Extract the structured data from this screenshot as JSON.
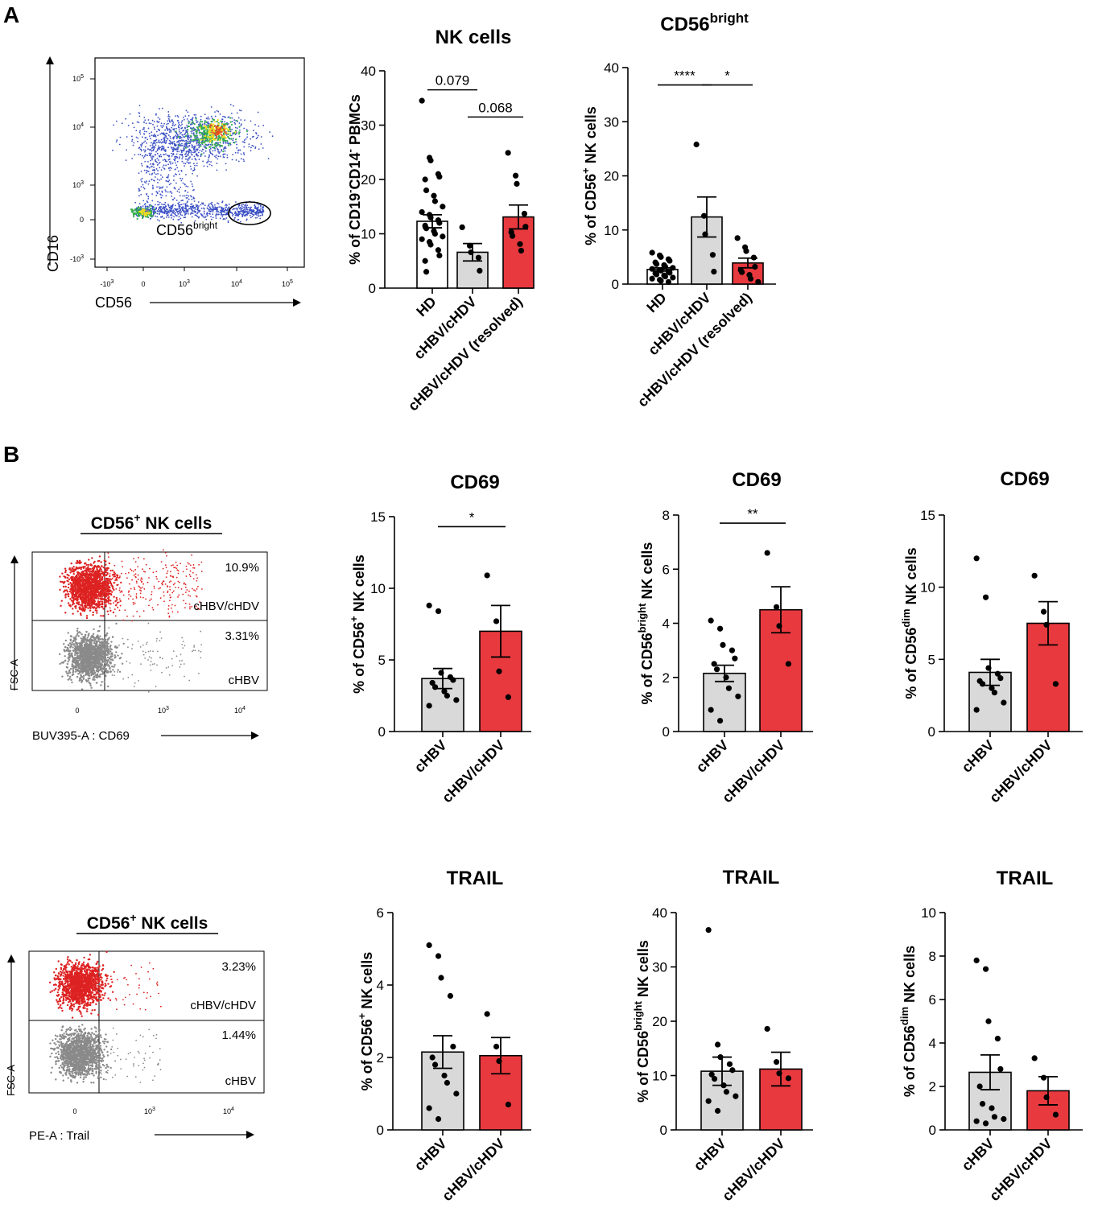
{
  "panels": {
    "A": "A",
    "B": "B"
  },
  "colors": {
    "white_bar": "#ffffff",
    "gray_bar": "#d9d9d9",
    "red_bar": "#e8393f",
    "flow_red": "#dd2222",
    "flow_gray": "#8a8a8a"
  },
  "flow": {
    "A": {
      "y_axis_label": "CD16",
      "x_axis_label": "CD56",
      "gate_label_main": "CD56",
      "gate_label_sup": "bright",
      "x_ticks": [
        "-10",
        "0",
        "10",
        "10",
        "10"
      ],
      "x_tick_exps": [
        "3",
        "",
        "3",
        "4",
        "5"
      ],
      "y_ticks": [
        "10",
        "10",
        "10",
        "0",
        "-10"
      ],
      "y_tick_exps": [
        "5",
        "4",
        "3",
        "",
        "3"
      ]
    },
    "B1": {
      "title_pre": "CD56",
      "title_sup": "+",
      "title_post": " NK cells",
      "top_pct": "10.9%",
      "top_group": "cHBV/cHDV",
      "bottom_pct": "3.31%",
      "bottom_group": "cHBV",
      "y_axis_label": "FSC-A",
      "x_axis_label": "BUV395-A : CD69",
      "x_ticks": [
        "0",
        "10",
        "10"
      ],
      "x_tick_exps": [
        "",
        "3",
        "4"
      ]
    },
    "B2": {
      "title_pre": "CD56",
      "title_sup": "+",
      "title_post": " NK cells",
      "top_pct": "3.23%",
      "top_group": "cHBV/cHDV",
      "bottom_pct": "1.44%",
      "bottom_group": "cHBV",
      "y_axis_label": "FSC-A",
      "x_axis_label": "PE-A : Trail",
      "x_ticks": [
        "0",
        "10",
        "10"
      ],
      "x_tick_exps": [
        "",
        "3",
        "4"
      ]
    }
  },
  "chart_data": [
    {
      "type": "bar",
      "id": "nk",
      "title": "NK cells",
      "title_sup": "",
      "ylabel_parts": [
        [
          "% of CD19",
          ""
        ],
        [
          "-",
          "sup"
        ],
        [
          "CD14",
          ""
        ],
        [
          "-",
          "sup"
        ],
        [
          " PBMCs",
          ""
        ]
      ],
      "ylim": [
        0,
        40
      ],
      "yticks": [
        0,
        10,
        20,
        30,
        40
      ],
      "categories": [
        "HD",
        "cHBV/cHDV",
        "cHBV/cHDV (resolved)"
      ],
      "values": [
        12.3,
        6.6,
        13.1
      ],
      "sem": [
        1.2,
        1.6,
        2.2
      ],
      "points": [
        [
          34.5,
          24,
          23.5,
          21,
          20.5,
          20,
          18,
          17,
          16,
          15,
          14,
          13.5,
          13,
          12.5,
          12,
          11.5,
          11,
          10.5,
          10,
          9.5,
          9,
          8.5,
          8,
          7,
          6,
          5,
          3
        ],
        [
          11.2,
          7.8,
          6.6,
          5.6,
          3.2
        ],
        [
          24.9,
          20.7,
          19.2,
          13.7,
          11.3,
          10.3,
          9.6,
          8.1,
          6.9
        ]
      ],
      "fill_keys": [
        "white_bar",
        "gray_bar",
        "red_bar"
      ],
      "significance": [
        {
          "from": 0,
          "to": 1,
          "label": "0.079",
          "level": 36.5
        },
        {
          "from": 1,
          "to": 2,
          "label": "0.068",
          "level": 31.5
        }
      ]
    },
    {
      "type": "bar",
      "id": "cd56b",
      "title": "CD56",
      "title_sup": "bright",
      "ylabel_parts": [
        [
          "% of CD56",
          ""
        ],
        [
          "+",
          "sup"
        ],
        [
          " NK cells",
          ""
        ]
      ],
      "ylim": [
        0,
        40
      ],
      "yticks": [
        0,
        10,
        20,
        30,
        40
      ],
      "categories": [
        "HD",
        "cHBV/cHDV",
        "cHBV/cHDV (resolved)"
      ],
      "values": [
        2.7,
        12.4,
        3.9
      ],
      "sem": [
        0.3,
        3.7,
        0.9
      ],
      "points": [
        [
          5.8,
          5.3,
          5.0,
          4.6,
          4.3,
          4.0,
          3.7,
          3.5,
          3.2,
          3.0,
          2.8,
          2.6,
          2.5,
          2.3,
          2.1,
          2.0,
          1.8,
          1.6,
          1.4,
          1.2,
          1.0,
          0.8,
          0.6,
          0.4
        ],
        [
          25.8,
          12.6,
          9.2,
          5.4,
          2.3
        ],
        [
          8.5,
          6.8,
          6.1,
          4.9,
          3.2,
          2.6,
          2.2,
          1.7,
          1.0,
          0.4
        ]
      ],
      "fill_keys": [
        "white_bar",
        "gray_bar",
        "red_bar"
      ],
      "significance": [
        {
          "from": 0,
          "to": 1,
          "label": "****",
          "level": 36.8
        },
        {
          "from": 1,
          "to": 2,
          "label": "*",
          "level": 36.8
        }
      ]
    },
    {
      "type": "bar",
      "id": "cd69a",
      "title": "CD69",
      "title_sup": "",
      "ylabel_parts": [
        [
          "% of CD56",
          ""
        ],
        [
          "+",
          "sup"
        ],
        [
          " NK cells",
          ""
        ]
      ],
      "ylim": [
        0,
        15
      ],
      "yticks": [
        0,
        5,
        10,
        15
      ],
      "categories": [
        "cHBV",
        "cHBV/cHDV"
      ],
      "values": [
        3.7,
        7.0
      ],
      "sem": [
        0.7,
        1.8
      ],
      "points": [
        [
          8.8,
          8.4,
          4.1,
          3.8,
          3.6,
          3.4,
          3.1,
          2.8,
          2.5,
          2.2,
          1.8
        ],
        [
          10.9,
          7.7,
          4.2,
          2.4
        ]
      ],
      "fill_keys": [
        "gray_bar",
        "red_bar"
      ],
      "significance": [
        {
          "from": 0,
          "to": 1,
          "label": "*",
          "level": 14.3
        }
      ]
    },
    {
      "type": "bar",
      "id": "cd69b",
      "title": "CD69",
      "title_sup": "",
      "ylabel_parts": [
        [
          "% of CD56",
          ""
        ],
        [
          "bright",
          "sup"
        ],
        [
          " NK cells",
          ""
        ]
      ],
      "ylim": [
        0,
        8
      ],
      "yticks": [
        0,
        2,
        4,
        6,
        8
      ],
      "categories": [
        "cHBV",
        "cHBV/cHDV"
      ],
      "values": [
        2.15,
        4.5
      ],
      "sem": [
        0.3,
        0.85
      ],
      "points": [
        [
          4.1,
          3.8,
          3.2,
          3.0,
          2.7,
          2.5,
          2.3,
          2.0,
          1.6,
          1.3,
          0.8,
          0.4
        ],
        [
          6.6,
          4.6,
          3.9,
          2.5
        ]
      ],
      "fill_keys": [
        "gray_bar",
        "red_bar"
      ],
      "significance": [
        {
          "from": 0,
          "to": 1,
          "label": "**",
          "level": 7.7
        }
      ]
    },
    {
      "type": "bar",
      "id": "cd69c",
      "title": "CD69",
      "title_sup": "",
      "ylabel_parts": [
        [
          "% of CD56",
          ""
        ],
        [
          "dim",
          "sup"
        ],
        [
          " NK cells",
          ""
        ]
      ],
      "ylim": [
        0,
        15
      ],
      "yticks": [
        0,
        5,
        10,
        15
      ],
      "categories": [
        "cHBV",
        "cHBV/cHDV"
      ],
      "values": [
        4.1,
        7.5
      ],
      "sem": [
        0.9,
        1.5
      ],
      "points": [
        [
          12.0,
          9.3,
          4.4,
          4.0,
          3.7,
          3.5,
          3.3,
          3.0,
          2.7,
          2.0,
          1.5
        ],
        [
          10.8,
          8.3,
          7.4,
          3.3
        ]
      ],
      "fill_keys": [
        "gray_bar",
        "red_bar"
      ],
      "significance": []
    },
    {
      "type": "bar",
      "id": "trail1",
      "title": "TRAIL",
      "title_sup": "",
      "ylabel_parts": [
        [
          "% of CD56",
          ""
        ],
        [
          "+",
          "sup"
        ],
        [
          " NK cells",
          ""
        ]
      ],
      "ylim": [
        0,
        6
      ],
      "yticks": [
        0,
        2,
        4,
        6
      ],
      "categories": [
        "cHBV",
        "cHBV/cHDV"
      ],
      "values": [
        2.15,
        2.05
      ],
      "sem": [
        0.45,
        0.5
      ],
      "points": [
        [
          5.1,
          4.8,
          4.2,
          3.7,
          2.3,
          2.0,
          1.8,
          1.5,
          1.3,
          1.0,
          0.6,
          0.3
        ],
        [
          3.2,
          2.3,
          1.9,
          0.7
        ]
      ],
      "fill_keys": [
        "gray_bar",
        "red_bar"
      ],
      "significance": []
    },
    {
      "type": "bar",
      "id": "trail2",
      "title": "TRAIL",
      "title_sup": "",
      "ylabel_parts": [
        [
          "% of CD56",
          ""
        ],
        [
          "bright",
          "sup"
        ],
        [
          " NK cells",
          ""
        ]
      ],
      "ylim": [
        0,
        40
      ],
      "yticks": [
        0,
        10,
        20,
        30,
        40
      ],
      "categories": [
        "cHBV",
        "cHBV/cHDV"
      ],
      "values": [
        10.8,
        11.2
      ],
      "sem": [
        2.6,
        3.1
      ],
      "points": [
        [
          36.8,
          15.7,
          13.4,
          12.1,
          11.0,
          10.2,
          9.4,
          8.2,
          7.0,
          6.2,
          5.3,
          3.5
        ],
        [
          18.6,
          12.5,
          10.4,
          9.5
        ]
      ],
      "fill_keys": [
        "gray_bar",
        "red_bar"
      ],
      "significance": []
    },
    {
      "type": "bar",
      "id": "trail3",
      "title": "TRAIL",
      "title_sup": "",
      "ylabel_parts": [
        [
          "% of CD56",
          ""
        ],
        [
          "dim",
          "sup"
        ],
        [
          " NK cells",
          ""
        ]
      ],
      "ylim": [
        0,
        10
      ],
      "yticks": [
        0,
        2,
        4,
        6,
        8,
        10
      ],
      "categories": [
        "cHBV",
        "cHBV/cHDV"
      ],
      "values": [
        2.65,
        1.8
      ],
      "sem": [
        0.8,
        0.65
      ],
      "points": [
        [
          7.8,
          7.4,
          5.0,
          4.2,
          2.8,
          2.0,
          1.2,
          1.0,
          0.6,
          0.5,
          0.4,
          0.3
        ],
        [
          3.3,
          2.4,
          1.5,
          0.7
        ]
      ],
      "fill_keys": [
        "gray_bar",
        "red_bar"
      ],
      "significance": []
    }
  ]
}
